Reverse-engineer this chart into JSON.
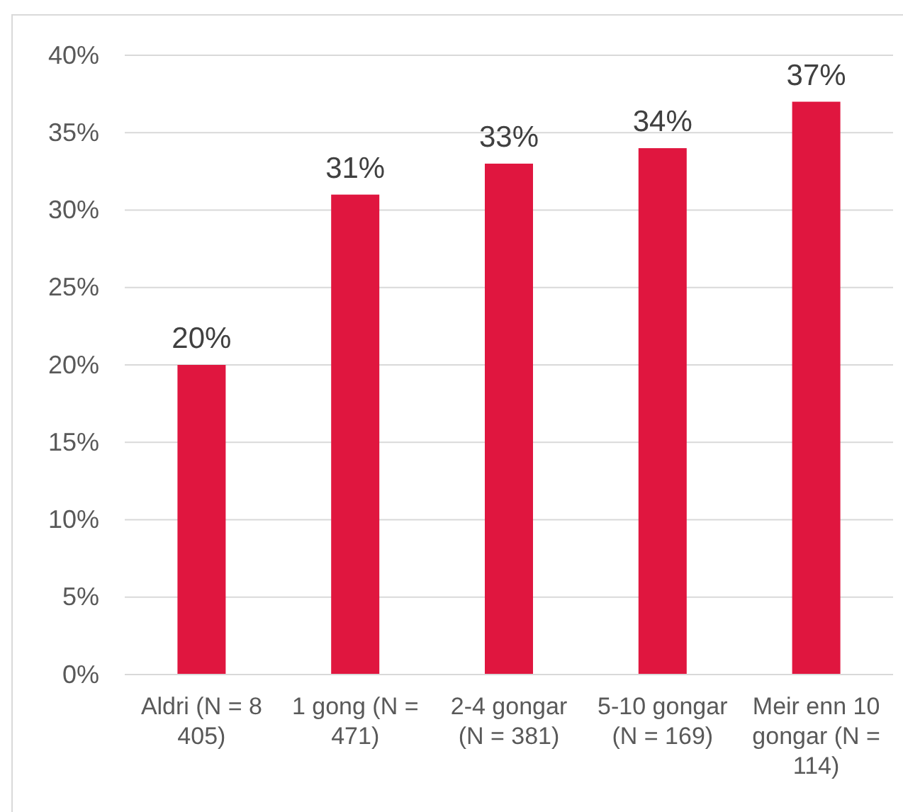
{
  "chart_data": {
    "type": "bar",
    "categories": [
      "Aldri (N = 8 405)",
      "1 gong (N = 471)",
      "2-4 gongar (N = 381)",
      "5-10 gongar (N = 169)",
      "Meir enn 10 gongar (N = 114)"
    ],
    "values": [
      20,
      31,
      33,
      34,
      37
    ],
    "color": "#e0163f",
    "ylim": [
      0,
      40
    ],
    "yticks": [
      {
        "value": 0,
        "label": "0%"
      },
      {
        "value": 5,
        "label": "5%"
      },
      {
        "value": 10,
        "label": "10%"
      },
      {
        "value": 15,
        "label": "15%"
      },
      {
        "value": 20,
        "label": "20%"
      },
      {
        "value": 25,
        "label": "25%"
      },
      {
        "value": 30,
        "label": "30%"
      },
      {
        "value": 35,
        "label": "35%"
      },
      {
        "value": 40,
        "label": "40%"
      }
    ],
    "value_labels": [
      "20%",
      "31%",
      "33%",
      "34%",
      "37%"
    ],
    "grid": "y"
  }
}
